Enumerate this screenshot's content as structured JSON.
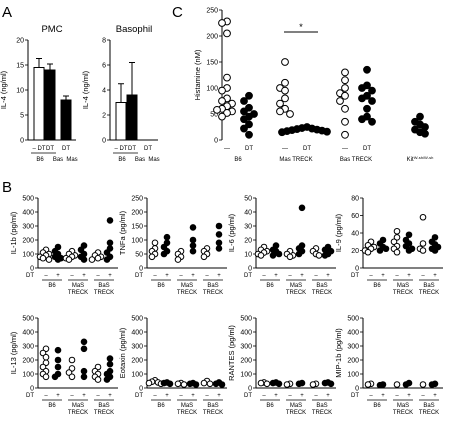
{
  "panel_letters": {
    "a": "A",
    "b": "B",
    "c": "C"
  },
  "chart_data": [
    {
      "id": "A-PMC",
      "type": "bar",
      "title": "PMC",
      "ylabel": "IL-4 (ng/ml)",
      "ylim": [
        0,
        20
      ],
      "yticks": [
        0,
        5,
        10,
        15,
        20
      ],
      "categories": [
        "– DT",
        "DT",
        "DT"
      ],
      "group_labels": [
        "B6",
        "Bas",
        "Mas"
      ],
      "values": [
        14.5,
        14.0,
        8.0
      ],
      "errors": [
        1.8,
        1.2,
        0.8
      ],
      "fills": [
        "#ffffff",
        "#000000",
        "#000000"
      ]
    },
    {
      "id": "A-Basophil",
      "type": "bar",
      "title": "Basophil",
      "ylabel": "IL-4 (ng/ml)",
      "ylim": [
        0,
        8
      ],
      "yticks": [
        0,
        2,
        4,
        6,
        8
      ],
      "categories": [
        "– DT",
        "DT",
        "DT"
      ],
      "group_labels": [
        "B6",
        "Bas",
        "Mas"
      ],
      "values": [
        3.0,
        3.6,
        0
      ],
      "errors": [
        1.5,
        2.6,
        0
      ],
      "value_labels": [
        "",
        "",
        "DT"
      ],
      "fills": [
        "#ffffff",
        "#000000",
        "#000000"
      ]
    },
    {
      "id": "C",
      "type": "scatter",
      "ylabel": "Histamine (nM)",
      "ylim": [
        0,
        250
      ],
      "yticks": [
        0,
        50,
        100,
        150,
        200,
        250
      ],
      "significance": "*",
      "groups": [
        {
          "label": "B6",
          "open": [
            228,
            225,
            205,
            120,
            100,
            95,
            80,
            75,
            70,
            65,
            60,
            58,
            55,
            52,
            45
          ],
          "filled": [
            85,
            75,
            62,
            55,
            50,
            45,
            40,
            30,
            22,
            10
          ]
        },
        {
          "label": "Mas TRECK",
          "open": [
            150,
            110,
            100,
            95,
            80,
            70,
            60,
            55,
            50
          ],
          "filled": [
            25,
            23,
            22,
            21,
            20,
            19,
            18,
            17,
            16,
            15
          ]
        },
        {
          "label": "Bas TRECK",
          "open": [
            130,
            115,
            100,
            90,
            85,
            75,
            60,
            35,
            10
          ],
          "filled": [
            135,
            105,
            100,
            95,
            85,
            80,
            75,
            60,
            45,
            40,
            35
          ]
        },
        {
          "label": "Kit",
          "label_sup": "W-sh/W-sh",
          "open": [],
          "filled": [
            45,
            35,
            30,
            25,
            20,
            15,
            12
          ]
        }
      ],
      "dt_labels": [
        "—",
        "DT",
        "—",
        "DT",
        "—",
        "DT"
      ]
    },
    {
      "id": "B-IL-1b",
      "type": "scatter",
      "ylabel": "IL-1b (pg/ml)",
      "ylim": [
        0,
        500
      ],
      "yticks": [
        0,
        100,
        200,
        300,
        400,
        500
      ],
      "groups": [
        {
          "label": "B6",
          "open": [
            130,
            110,
            100,
            90,
            80,
            70,
            60
          ],
          "filled": [
            150,
            120,
            100,
            80,
            70,
            60
          ]
        },
        {
          "label": "MaS TRECK",
          "open": [
            120,
            100,
            90,
            80,
            70,
            60
          ],
          "filled": [
            160,
            130,
            100,
            80,
            60
          ]
        },
        {
          "label": "BaS TRECK",
          "open": [
            110,
            90,
            80,
            70,
            60
          ],
          "filled": [
            340,
            180,
            140,
            110,
            80,
            60
          ]
        }
      ]
    },
    {
      "id": "B-TNFa",
      "type": "scatter",
      "ylabel": "TNFa (pg/ml)",
      "ylim": [
        0,
        250
      ],
      "yticks": [
        0,
        50,
        100,
        150,
        200,
        250
      ],
      "groups": [
        {
          "label": "B6",
          "open": [
            90,
            70,
            60,
            50,
            40
          ],
          "filled": [
            110,
            90,
            75,
            60,
            50
          ]
        },
        {
          "label": "MaS TRECK",
          "open": [
            60,
            50,
            40,
            30
          ],
          "filled": [
            145,
            100,
            80,
            60
          ]
        },
        {
          "label": "BaS TRECK",
          "open": [
            70,
            60,
            50,
            40
          ],
          "filled": [
            150,
            120,
            90,
            70
          ]
        }
      ]
    },
    {
      "id": "B-IL-6",
      "type": "scatter",
      "ylabel": "IL-6 (pg/ml)",
      "ylim": [
        0,
        50
      ],
      "yticks": [
        0,
        10,
        20,
        30,
        40,
        50
      ],
      "groups": [
        {
          "label": "B6",
          "open": [
            15,
            13,
            12,
            11,
            10,
            9
          ],
          "filled": [
            16,
            13,
            12,
            10,
            9
          ]
        },
        {
          "label": "MaS TRECK",
          "open": [
            12,
            10,
            9,
            8
          ],
          "filled": [
            43,
            16,
            14,
            12,
            10
          ]
        },
        {
          "label": "BaS TRECK",
          "open": [
            14,
            12,
            10,
            9
          ],
          "filled": [
            15,
            13,
            12,
            10,
            9
          ]
        }
      ]
    },
    {
      "id": "B-IL-9",
      "type": "scatter",
      "ylabel": "IL-9 (pg/ml)",
      "ylim": [
        0,
        80
      ],
      "yticks": [
        0,
        20,
        40,
        60,
        80
      ],
      "groups": [
        {
          "label": "B6",
          "open": [
            30,
            26,
            24,
            22,
            20,
            18
          ],
          "filled": [
            32,
            28,
            24,
            22,
            20
          ]
        },
        {
          "label": "MaS TRECK",
          "open": [
            42,
            35,
            30,
            25,
            22,
            18
          ],
          "filled": [
            38,
            32,
            28,
            25,
            22,
            20
          ]
        },
        {
          "label": "BaS TRECK",
          "open": [
            58,
            28,
            22,
            20
          ],
          "filled": [
            35,
            30,
            27,
            24,
            22,
            20
          ]
        }
      ]
    },
    {
      "id": "B-IL-13",
      "type": "scatter",
      "ylabel": "IL-13 (pg/ml)",
      "ylim": [
        0,
        500
      ],
      "yticks": [
        0,
        100,
        200,
        300,
        400,
        500
      ],
      "groups": [
        {
          "label": "B6",
          "open": [
            280,
            250,
            220,
            180,
            150,
            120,
            100,
            80
          ],
          "filled": [
            270,
            200,
            150,
            100,
            80
          ]
        },
        {
          "label": "MaS TRECK",
          "open": [
            200,
            140,
            110,
            80
          ],
          "filled": [
            330,
            280,
            120,
            80
          ]
        },
        {
          "label": "BaS TRECK",
          "open": [
            150,
            120,
            100,
            80,
            60
          ],
          "filled": [
            210,
            170,
            120,
            100,
            80,
            60
          ]
        }
      ]
    },
    {
      "id": "B-Eotaxin",
      "type": "scatter",
      "ylabel": "Eotaxin (pg/ml)",
      "ylim": [
        0,
        500
      ],
      "yticks": [
        0,
        100,
        200,
        300,
        400,
        500
      ],
      "groups": [
        {
          "label": "B6",
          "open": [
            55,
            45,
            40,
            35,
            30
          ],
          "filled": [
            40,
            35,
            30
          ]
        },
        {
          "label": "MaS TRECK",
          "open": [
            35,
            30,
            25
          ],
          "filled": [
            35,
            30,
            25
          ]
        },
        {
          "label": "BaS TRECK",
          "open": [
            50,
            35,
            30
          ],
          "filled": [
            40,
            30,
            25
          ]
        }
      ]
    },
    {
      "id": "B-RANTES",
      "type": "scatter",
      "ylabel": "RANTES (pg/ml)",
      "ylim": [
        0,
        500
      ],
      "yticks": [
        0,
        100,
        200,
        300,
        400,
        500
      ],
      "groups": [
        {
          "label": "B6",
          "open": [
            40,
            35,
            30
          ],
          "filled": [
            40,
            35,
            30
          ]
        },
        {
          "label": "MaS TRECK",
          "open": [
            30,
            25
          ],
          "filled": [
            35,
            30
          ]
        },
        {
          "label": "BaS TRECK",
          "open": [
            30,
            25
          ],
          "filled": [
            40,
            35,
            30
          ]
        }
      ]
    },
    {
      "id": "B-MIP-1b",
      "type": "scatter",
      "ylabel": "MIP-1b (pg/ml)",
      "ylim": [
        0,
        500
      ],
      "yticks": [
        0,
        100,
        200,
        300,
        400,
        500
      ],
      "groups": [
        {
          "label": "B6",
          "open": [
            30,
            25
          ],
          "filled": [
            25,
            20
          ]
        },
        {
          "label": "MaS TRECK",
          "open": [
            25
          ],
          "filled": [
            35,
            25
          ]
        },
        {
          "label": "BaS TRECK",
          "open": [
            25
          ],
          "filled": [
            30,
            25
          ]
        }
      ]
    }
  ],
  "b_axis": {
    "dt_label": "DT",
    "minus": "–",
    "plus": "+"
  }
}
